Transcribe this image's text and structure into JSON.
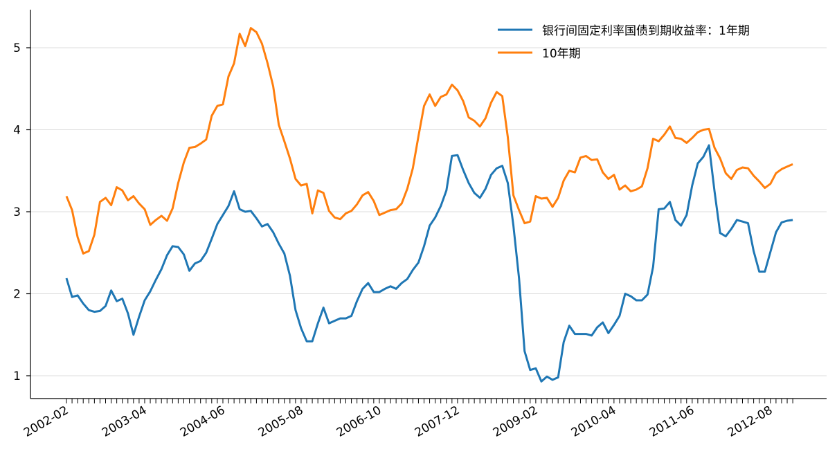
{
  "chart_data": {
    "type": "line",
    "title": "",
    "xlabel": "",
    "ylabel": "",
    "x_start": "2002-02",
    "ylim": [
      0.7,
      5.45
    ],
    "y_ticks": [
      1,
      2,
      3,
      4,
      5
    ],
    "x_tick_labels": [
      "2002-02",
      "2003-04",
      "2004-06",
      "2005-08",
      "2006-10",
      "2007-12",
      "2009-02",
      "2010-04",
      "2011-06",
      "2012-08"
    ],
    "grid": "horizontal",
    "legend_position": "top-right",
    "series": [
      {
        "name": "银行间固定利率国债到期收益率：1年期",
        "color": "#1f77b4",
        "values": [
          2.19,
          1.96,
          1.98,
          1.88,
          1.8,
          1.78,
          1.79,
          1.85,
          2.04,
          1.91,
          1.94,
          1.76,
          1.5,
          1.72,
          1.92,
          2.03,
          2.17,
          2.3,
          2.47,
          2.58,
          2.57,
          2.48,
          2.28,
          2.37,
          2.4,
          2.5,
          2.67,
          2.85,
          2.96,
          3.07,
          3.25,
          3.03,
          3.0,
          3.01,
          2.92,
          2.82,
          2.85,
          2.75,
          2.61,
          2.49,
          2.22,
          1.8,
          1.58,
          1.42,
          1.42,
          1.64,
          1.83,
          1.64,
          1.67,
          1.7,
          1.7,
          1.73,
          1.91,
          2.06,
          2.13,
          2.02,
          2.02,
          2.06,
          2.09,
          2.06,
          2.13,
          2.18,
          2.29,
          2.38,
          2.58,
          2.83,
          2.93,
          3.07,
          3.26,
          3.68,
          3.69,
          3.51,
          3.35,
          3.23,
          3.17,
          3.28,
          3.45,
          3.53,
          3.56,
          3.35,
          2.83,
          2.19,
          1.3,
          1.07,
          1.09,
          0.93,
          0.99,
          0.95,
          0.98,
          1.41,
          1.61,
          1.51,
          1.51,
          1.51,
          1.49,
          1.59,
          1.65,
          1.52,
          1.62,
          1.73,
          2.0,
          1.97,
          1.92,
          1.92,
          1.99,
          2.33,
          3.03,
          3.04,
          3.12,
          2.9,
          2.83,
          2.96,
          3.32,
          3.59,
          3.67,
          3.81,
          3.25,
          2.74,
          2.7,
          2.79,
          2.9,
          2.88,
          2.86,
          2.52,
          2.27,
          2.27,
          2.51,
          2.75,
          2.87,
          2.89,
          2.9
        ]
      },
      {
        "name": "10年期",
        "color": "#ff7f0e",
        "values": [
          3.19,
          3.02,
          2.69,
          2.49,
          2.52,
          2.72,
          3.12,
          3.17,
          3.08,
          3.3,
          3.26,
          3.14,
          3.19,
          3.1,
          3.03,
          2.84,
          2.9,
          2.95,
          2.89,
          3.04,
          3.35,
          3.6,
          3.78,
          3.79,
          3.83,
          3.88,
          4.17,
          4.29,
          4.31,
          4.65,
          4.81,
          5.17,
          5.02,
          5.24,
          5.19,
          5.05,
          4.81,
          4.53,
          4.06,
          3.86,
          3.65,
          3.4,
          3.32,
          3.34,
          2.98,
          3.26,
          3.23,
          3.01,
          2.93,
          2.91,
          2.98,
          3.01,
          3.09,
          3.2,
          3.24,
          3.13,
          2.96,
          2.99,
          3.02,
          3.03,
          3.1,
          3.28,
          3.53,
          3.92,
          4.29,
          4.43,
          4.29,
          4.4,
          4.43,
          4.55,
          4.48,
          4.35,
          4.15,
          4.11,
          4.04,
          4.14,
          4.33,
          4.46,
          4.41,
          3.91,
          3.2,
          3.02,
          2.86,
          2.88,
          3.19,
          3.16,
          3.17,
          3.06,
          3.17,
          3.38,
          3.5,
          3.48,
          3.66,
          3.68,
          3.63,
          3.64,
          3.48,
          3.4,
          3.45,
          3.27,
          3.32,
          3.25,
          3.27,
          3.31,
          3.53,
          3.89,
          3.86,
          3.94,
          4.04,
          3.9,
          3.89,
          3.84,
          3.9,
          3.97,
          4.0,
          4.01,
          3.78,
          3.65,
          3.47,
          3.4,
          3.51,
          3.54,
          3.53,
          3.44,
          3.37,
          3.29,
          3.34,
          3.47,
          3.52,
          3.55,
          3.58
        ]
      }
    ]
  }
}
